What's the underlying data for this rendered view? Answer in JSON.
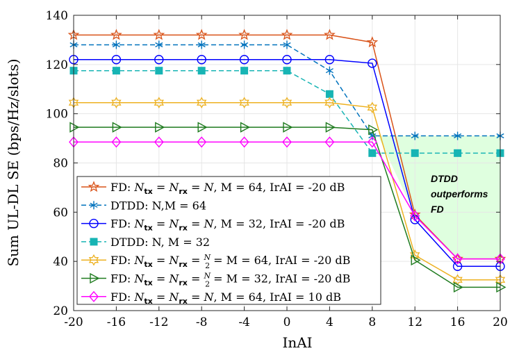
{
  "chart_data": {
    "type": "line",
    "title": "",
    "xlabel": "InAI",
    "ylabel": "Sum UL-DL SE (bps/Hz/slots)",
    "xlim": [
      -20,
      20
    ],
    "ylim": [
      20,
      140
    ],
    "xticks": [
      -20,
      -16,
      -12,
      -8,
      -4,
      0,
      4,
      8,
      12,
      16,
      20
    ],
    "yticks": [
      20,
      40,
      60,
      80,
      100,
      120,
      140
    ],
    "x": [
      -20,
      -16,
      -12,
      -8,
      -4,
      0,
      4,
      8,
      12,
      16,
      20
    ],
    "series": [
      {
        "name": "FD: N_tx = N_rx = N, M = 64, IrAI = -20 dB",
        "color": "#D95319",
        "marker": "star",
        "dash": false,
        "values": [
          132,
          132,
          132,
          132,
          132,
          132,
          132,
          129,
          59,
          41,
          41
        ]
      },
      {
        "name": "DTDD: N,M = 64",
        "color": "#0072BD",
        "marker": "asterisk",
        "dash": true,
        "values": [
          128,
          128,
          128,
          128,
          128,
          128,
          117.5,
          91,
          91,
          91,
          91
        ]
      },
      {
        "name": "FD: N_tx = N_rx = N, M = 32, IrAI = -20 dB",
        "color": "#0000FF",
        "marker": "circle",
        "dash": false,
        "values": [
          122,
          122,
          122,
          122,
          122,
          122,
          122,
          120.5,
          57,
          38,
          38
        ]
      },
      {
        "name": "DTDD: N, M = 32",
        "color": "#17B4B4",
        "marker": "square",
        "dash": true,
        "values": [
          117.5,
          117.5,
          117.5,
          117.5,
          117.5,
          117.5,
          108,
          84,
          84,
          84,
          84
        ]
      },
      {
        "name": "FD: N_tx = N_rx = N/2, M = 64, IrAI = -20 dB",
        "color": "#EDB120",
        "marker": "hexagram",
        "dash": false,
        "values": [
          104.5,
          104.5,
          104.5,
          104.5,
          104.5,
          104.5,
          104.5,
          102.5,
          42.5,
          32.5,
          32.5
        ]
      },
      {
        "name": "FD: N_tx = N_rx = N/2, M = 32, IrAI = -20 dB",
        "color": "#1E7B1E",
        "marker": "triangle-right",
        "dash": false,
        "values": [
          94.5,
          94.5,
          94.5,
          94.5,
          94.5,
          94.5,
          94.5,
          93.5,
          40.5,
          29.5,
          29.5
        ]
      },
      {
        "name": "FD: N_tx = N_rx = N, M = 64, IrAI = 10 dB",
        "color": "#FF00FF",
        "marker": "diamond",
        "dash": false,
        "values": [
          88.5,
          88.5,
          88.5,
          88.5,
          88.5,
          88.5,
          88.5,
          88.5,
          58.5,
          41,
          41
        ]
      }
    ],
    "legend": {
      "location": "bottom-left",
      "entries": [
        {
          "prefix": "FD: ",
          "nval": "N",
          "mid": " = M = 64, IrAI = -20 dB",
          "frac": false
        },
        {
          "plain": "DTDD: N,M = 64"
        },
        {
          "prefix": "FD: ",
          "nval": "N",
          "mid": " = M = 32, IrAI = -20 dB",
          "frac": false
        },
        {
          "plain": "DTDD: N, M = 32"
        },
        {
          "prefix": "FD: ",
          "nval": "N/2",
          "mid": " = M = 64, IrAI = -20 dB",
          "frac": true
        },
        {
          "prefix": "FD: ",
          "nval": "N/2",
          "mid": " = M = 32, IrAI = -20 dB",
          "frac": true
        },
        {
          "prefix": "FD: ",
          "nval": "N",
          "mid": " = M = 64, IrAI = 10 dB",
          "frac": false
        }
      ]
    },
    "annotation": {
      "lines": [
        "DTDD",
        "outperforms",
        "FD"
      ],
      "region_color": "#DFFFDF"
    }
  }
}
